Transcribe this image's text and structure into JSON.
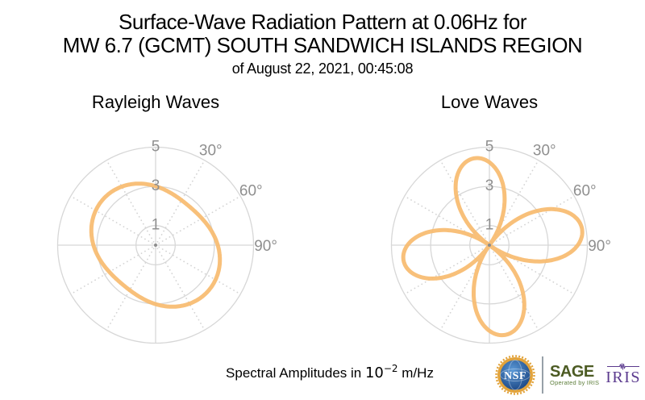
{
  "header": {
    "title_line1": "Surface-Wave Radiation Pattern at 0.06Hz for",
    "title_line2": "MW 6.7 (GCMT) SOUTH SANDWICH ISLANDS REGION",
    "subtitle": "of August 22, 2021, 00:45:08"
  },
  "footer": {
    "units_prefix": "Spectral Amplitudes in ",
    "units_base": "10",
    "units_exponent": "−2",
    "units_suffix": " m/Hz"
  },
  "branding": {
    "nsf_label": "NSF",
    "sage_label": "SAGE",
    "sage_tagline": "Operated by IRIS",
    "iris_label": "IRIS",
    "colors": {
      "nsf_gold": "#E2A33B",
      "nsf_blue_dark": "#16407E",
      "nsf_blue_light": "#5C9AD8",
      "sage_green": "#4C5B23",
      "tagline_green": "#5E7F3C",
      "iris_purple": "#5B3A8E",
      "separator_gray": "#97A0A8"
    }
  },
  "polar_grid": {
    "dotted_azimuths_deg": [
      30,
      60,
      120,
      150,
      210,
      240,
      300,
      330
    ],
    "solid_axes_deg": [
      0,
      90,
      180,
      270
    ],
    "grid_color": "#D7D7D7",
    "dot_grid_color": "#D4D4D4",
    "label_color": "#8F8F8F",
    "curve_color": "#F7BB70",
    "center_dot_color": "#8C8C8C"
  },
  "chart_data": [
    {
      "type": "polar-line",
      "title": "Rayleigh Waves",
      "angular_convention": "azimuth degrees clockwise from north (up)",
      "r_ticks": [
        1,
        3,
        5
      ],
      "r_max": 5,
      "theta_tick_labels": [
        {
          "label": "30°",
          "deg": 30
        },
        {
          "label": "60°",
          "deg": 60
        },
        {
          "label": "90°",
          "deg": 90
        }
      ],
      "units": "10^-2 m/Hz",
      "pattern_model": {
        "form": "oval",
        "mean": 3.09,
        "amplitude": 0.47,
        "max_azimuth_deg": 130
      },
      "samples": {
        "azimuth_deg": [
          0,
          15,
          30,
          45,
          60,
          75,
          90,
          105,
          120,
          135,
          150,
          165,
          180,
          195,
          210,
          225,
          240,
          255,
          270,
          285,
          300,
          315,
          330,
          345
        ],
        "r": [
          3.01,
          2.79,
          2.65,
          2.63,
          2.73,
          2.93,
          3.17,
          3.39,
          3.53,
          3.55,
          3.45,
          3.25,
          3.01,
          2.79,
          2.65,
          2.63,
          2.73,
          2.93,
          3.17,
          3.39,
          3.53,
          3.55,
          3.45,
          3.25
        ]
      }
    },
    {
      "type": "polar-line",
      "title": "Love Waves",
      "angular_convention": "azimuth degrees clockwise from north (up)",
      "r_ticks": [
        1,
        3,
        5
      ],
      "r_max": 5,
      "theta_tick_labels": [
        {
          "label": "30°",
          "deg": 30
        },
        {
          "label": "60°",
          "deg": 60
        },
        {
          "label": "90°",
          "deg": 90
        }
      ],
      "units": "10^-2 m/Hz",
      "pattern_model": {
        "form": "four_lobes",
        "first_null_azimuth_deg": 35,
        "lobe_peak_azimuths_deg": [
          80,
          170,
          260,
          350
        ],
        "lobe_amplitudes": [
          4.8,
          4.65,
          4.45,
          4.5
        ]
      },
      "samples": {
        "azimuth_deg": [
          0,
          15,
          30,
          45,
          60,
          75,
          90,
          105,
          120,
          135,
          150,
          165,
          180,
          195,
          210,
          225,
          240,
          255,
          270,
          285,
          300,
          315,
          330,
          345
        ],
        "r": [
          4.23,
          2.89,
          0.78,
          1.64,
          3.68,
          4.73,
          4.51,
          3.09,
          0.83,
          1.59,
          3.56,
          4.58,
          4.37,
          2.99,
          0.81,
          1.52,
          3.41,
          4.38,
          4.18,
          2.86,
          0.77,
          1.54,
          3.45,
          4.43
        ]
      }
    }
  ]
}
